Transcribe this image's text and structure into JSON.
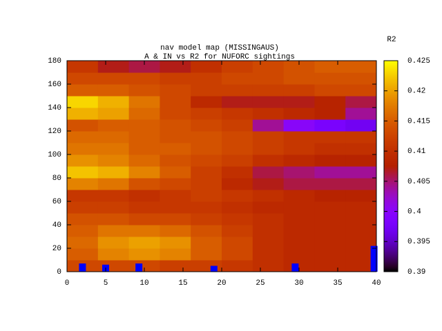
{
  "chart_data": {
    "type": "heatmap",
    "title": "nav model map (MISSINGAUS)",
    "subtitle": "A & IN vs R2 for NUFORC sightings",
    "colorbar_label": "R2",
    "palette": "gnuplot",
    "xlim": [
      0,
      40
    ],
    "ylim": [
      0,
      180
    ],
    "xticks": [
      0,
      5,
      10,
      15,
      20,
      25,
      30,
      35,
      40
    ],
    "yticks": [
      0,
      20,
      40,
      60,
      80,
      100,
      120,
      140,
      160,
      180
    ],
    "zlim": [
      0.39,
      0.425
    ],
    "zticks": [
      0.39,
      0.395,
      0.4,
      0.405,
      0.41,
      0.415,
      0.42,
      0.425
    ],
    "x": [
      2,
      6,
      10,
      14,
      18,
      22,
      26,
      30,
      34,
      38
    ],
    "y": [
      5,
      15,
      25,
      35,
      45,
      55,
      65,
      75,
      85,
      95,
      105,
      115,
      125,
      135,
      145,
      155,
      165,
      175
    ],
    "z": [
      [
        0.413,
        0.413,
        0.413,
        0.412,
        0.412,
        0.411,
        0.41,
        0.409,
        0.409,
        0.409
      ],
      [
        0.415,
        0.418,
        0.419,
        0.418,
        0.415,
        0.413,
        0.41,
        0.409,
        0.409,
        0.409
      ],
      [
        0.416,
        0.419,
        0.42,
        0.419,
        0.415,
        0.413,
        0.41,
        0.409,
        0.409,
        0.409
      ],
      [
        0.415,
        0.417,
        0.417,
        0.416,
        0.414,
        0.412,
        0.41,
        0.409,
        0.409,
        0.409
      ],
      [
        0.414,
        0.414,
        0.413,
        0.413,
        0.412,
        0.411,
        0.41,
        0.409,
        0.409,
        0.409
      ],
      [
        0.412,
        0.412,
        0.411,
        0.411,
        0.411,
        0.41,
        0.409,
        0.409,
        0.409,
        0.409
      ],
      [
        0.411,
        0.411,
        0.41,
        0.411,
        0.412,
        0.411,
        0.41,
        0.409,
        0.408,
        0.408
      ],
      [
        0.418,
        0.417,
        0.414,
        0.413,
        0.412,
        0.409,
        0.407,
        0.406,
        0.406,
        0.406
      ],
      [
        0.422,
        0.421,
        0.418,
        0.415,
        0.412,
        0.41,
        0.406,
        0.405,
        0.404,
        0.404
      ],
      [
        0.419,
        0.418,
        0.416,
        0.414,
        0.413,
        0.412,
        0.41,
        0.409,
        0.408,
        0.408
      ],
      [
        0.417,
        0.417,
        0.415,
        0.415,
        0.414,
        0.413,
        0.412,
        0.411,
        0.41,
        0.41
      ],
      [
        0.416,
        0.416,
        0.415,
        0.414,
        0.414,
        0.413,
        0.412,
        0.411,
        0.411,
        0.411
      ],
      [
        0.414,
        0.415,
        0.415,
        0.414,
        0.413,
        0.412,
        0.404,
        0.4,
        0.398,
        0.397
      ],
      [
        0.421,
        0.42,
        0.416,
        0.413,
        0.412,
        0.411,
        0.41,
        0.409,
        0.408,
        0.404
      ],
      [
        0.423,
        0.421,
        0.417,
        0.413,
        0.409,
        0.407,
        0.407,
        0.407,
        0.408,
        0.406
      ],
      [
        0.415,
        0.415,
        0.414,
        0.413,
        0.412,
        0.412,
        0.412,
        0.412,
        0.413,
        0.413
      ],
      [
        0.413,
        0.413,
        0.413,
        0.412,
        0.412,
        0.413,
        0.413,
        0.414,
        0.414,
        0.414
      ],
      [
        0.411,
        0.407,
        0.406,
        0.407,
        0.41,
        0.412,
        0.413,
        0.414,
        0.415,
        0.415
      ]
    ],
    "overlay": {
      "type": "bar",
      "color": "#0000ff",
      "x": [
        2,
        5,
        9.3,
        19,
        29.5,
        39.7
      ],
      "values": [
        7,
        6,
        7,
        5,
        7,
        22
      ]
    }
  }
}
